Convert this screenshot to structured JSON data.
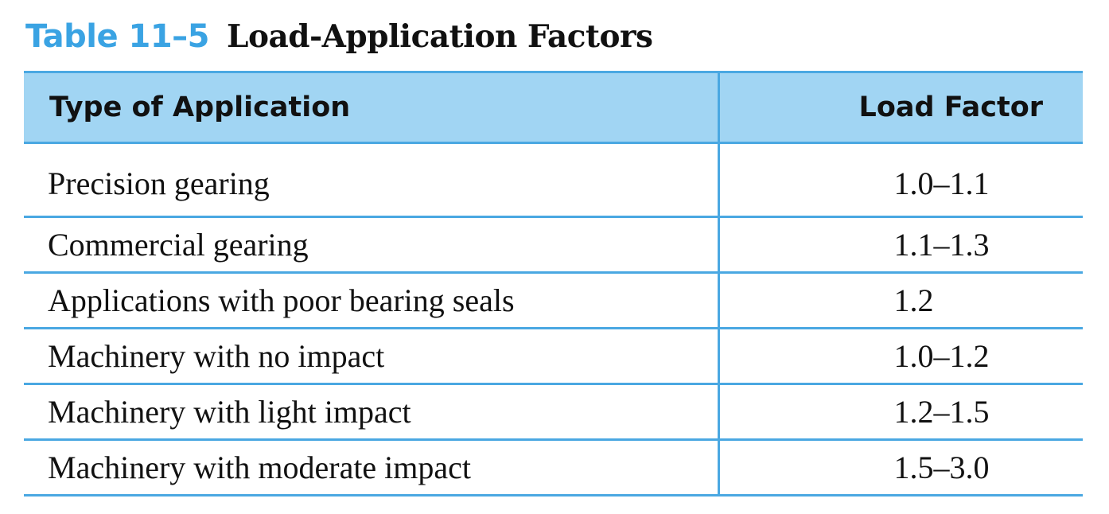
{
  "caption": {
    "label": "Table 11–5",
    "title": "Load-Application Factors"
  },
  "colors": {
    "accent": "#3aa3e3",
    "header_fill": "#a1d5f3",
    "rule": "#4aa8e2"
  },
  "table": {
    "headers": [
      "Type of Application",
      "Load Factor"
    ],
    "rows": [
      [
        "Precision gearing",
        "1.0–1.1"
      ],
      [
        "Commercial gearing",
        "1.1–1.3"
      ],
      [
        "Applications with poor bearing seals",
        "1.2"
      ],
      [
        "Machinery with no impact",
        "1.0–1.2"
      ],
      [
        "Machinery with light impact",
        "1.2–1.5"
      ],
      [
        "Machinery with moderate impact",
        "1.5–3.0"
      ]
    ]
  }
}
